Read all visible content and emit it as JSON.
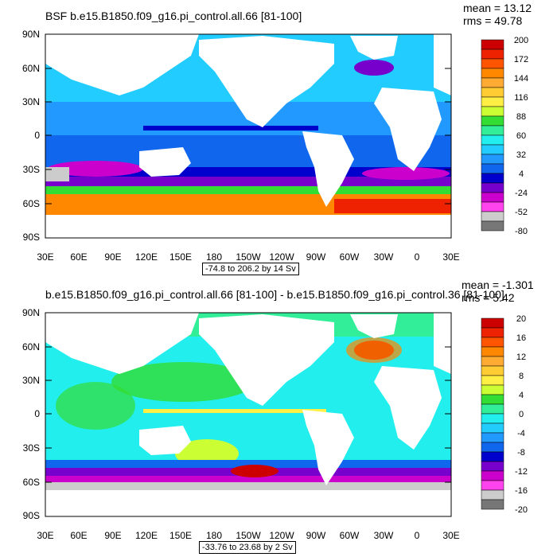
{
  "panels": [
    {
      "title": "BSF b.e15.B1850.f09_g16.pi_control.all.66 [81-100]",
      "mean": "mean = 13.12",
      "rms": "rms = 49.78",
      "range": "-74.8 to 206.2 by 14 Sv",
      "lat_labels": [
        "90N",
        "60N",
        "30N",
        "0",
        "30S",
        "60S",
        "90S"
      ],
      "lon_labels": [
        "30E",
        "60E",
        "90E",
        "120E",
        "150E",
        "180",
        "150W",
        "120W",
        "90W",
        "60W",
        "30W",
        "0",
        "30E"
      ],
      "colorbar_labels": [
        "200",
        "172",
        "144",
        "116",
        "88",
        "60",
        "32",
        "4",
        "-24",
        "-52",
        "-80"
      ],
      "colorbar_colors": [
        "#cc0000",
        "#ee2200",
        "#ff5500",
        "#ff8800",
        "#ffaa33",
        "#ffcc33",
        "#ffee44",
        "#ccff33",
        "#33dd33",
        "#33ee99",
        "#22eeee",
        "#22ccff",
        "#2299ff",
        "#1166ee",
        "#0000cc",
        "#7700cc",
        "#cc00cc",
        "#ff44ee",
        "#cccccc",
        "#777777"
      ]
    },
    {
      "title": "b.e15.B1850.f09_g16.pi_control.all.66 [81-100] - b.e15.B1850.f09_g16.pi_control.36 [81-100]",
      "mean": "mean = -1.301",
      "rms": "rms = 5.42",
      "range": "-33.76 to 23.68 by 2 Sv",
      "lat_labels": [
        "90N",
        "60N",
        "30N",
        "0",
        "30S",
        "60S",
        "90S"
      ],
      "lon_labels": [
        "30E",
        "60E",
        "90E",
        "120E",
        "150E",
        "180",
        "150W",
        "120W",
        "90W",
        "60W",
        "30W",
        "0",
        "30E"
      ],
      "colorbar_labels": [
        "20",
        "16",
        "12",
        "8",
        "4",
        "0",
        "-4",
        "-8",
        "-12",
        "-16",
        "-20"
      ],
      "colorbar_colors": [
        "#cc0000",
        "#ee2200",
        "#ff5500",
        "#ff8800",
        "#ffaa33",
        "#ffcc33",
        "#ffee44",
        "#ccff33",
        "#33dd33",
        "#33ee99",
        "#22eeee",
        "#22ccff",
        "#2299ff",
        "#1166ee",
        "#0000cc",
        "#7700cc",
        "#cc00cc",
        "#ff44ee",
        "#cccccc",
        "#777777"
      ]
    }
  ]
}
